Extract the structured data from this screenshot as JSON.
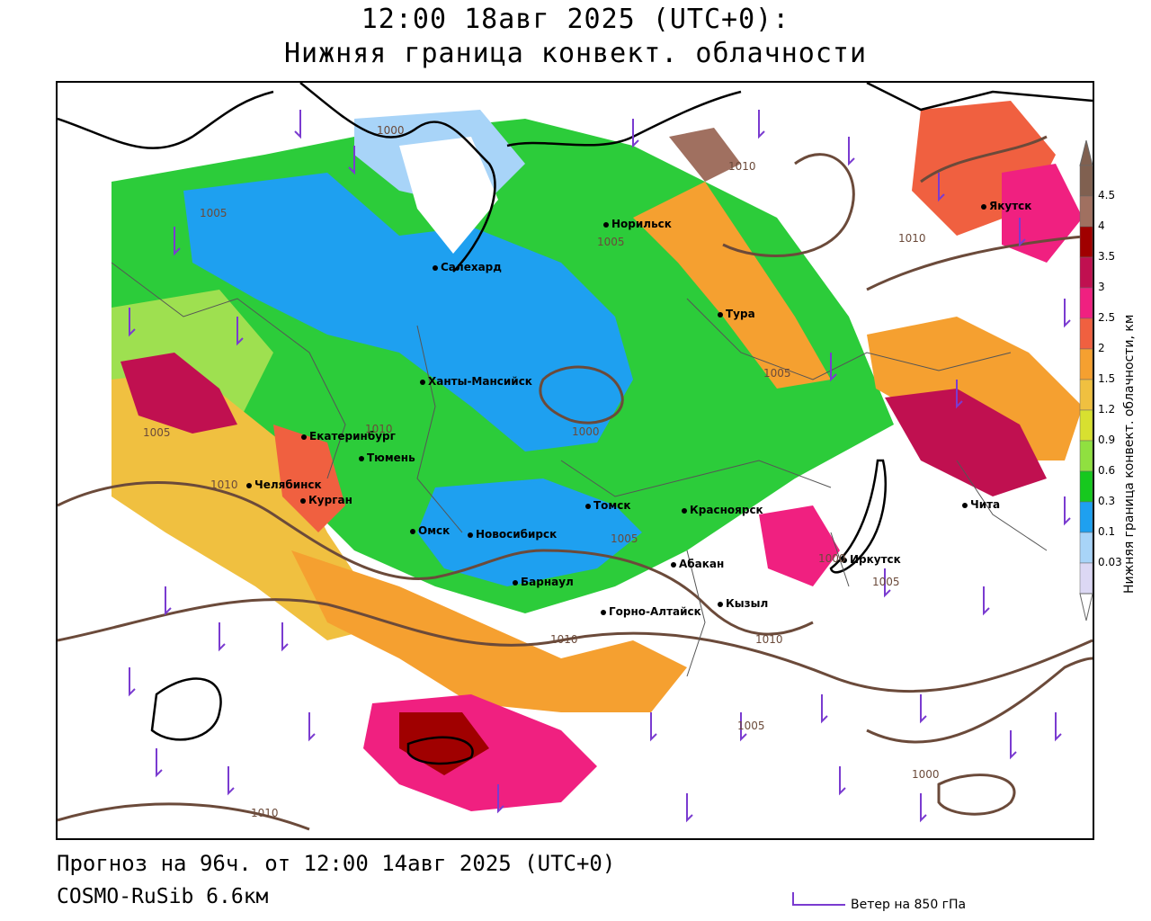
{
  "header": {
    "title_line1": "12:00 18авг 2025 (UTC+0):",
    "title_line2": "Нижняя граница конвект. облачности"
  },
  "footer": {
    "forecast": "Прогноз на 96ч. от 12:00 14авг 2025 (UTC+0)",
    "model": "COSMO-RuSib 6.6км",
    "wind_legend": "Ветер на 850 гПа"
  },
  "colorbar": {
    "title": "Нижняя граница конвект. облачности, км",
    "ticks": [
      "0.03",
      "0.1",
      "0.3",
      "0.6",
      "0.9",
      "1.2",
      "1.5",
      "2",
      "2.5",
      "3",
      "3.5",
      "4",
      "4.5"
    ],
    "colors": [
      "#dcd8f4",
      "#a8d4f8",
      "#1ea0f0",
      "#16c81e",
      "#90e040",
      "#d8e030",
      "#f0c040",
      "#f5a030",
      "#f06040",
      "#f02080",
      "#c01050",
      "#a00000",
      "#a07060",
      "#806050"
    ]
  },
  "cities": [
    {
      "name": "Норильск"
    },
    {
      "name": "Якутск"
    },
    {
      "name": "Салехард"
    },
    {
      "name": "Тура"
    },
    {
      "name": "Ханты-Мансийск"
    },
    {
      "name": "Екатеринбург"
    },
    {
      "name": "Тюмень"
    },
    {
      "name": "Челябинск"
    },
    {
      "name": "Курган"
    },
    {
      "name": "Омск"
    },
    {
      "name": "Новосибирск"
    },
    {
      "name": "Томск"
    },
    {
      "name": "Красноярск"
    },
    {
      "name": "Барнаул"
    },
    {
      "name": "Абакан"
    },
    {
      "name": "Иркутск"
    },
    {
      "name": "Чита"
    },
    {
      "name": "Горно-Алтайск"
    },
    {
      "name": "Кызыл"
    }
  ],
  "isobars": [
    "1000",
    "1005",
    "1010",
    "1005",
    "1010",
    "1005",
    "1000",
    "1010",
    "1005",
    "1010",
    "1005",
    "1005",
    "1010",
    "1005",
    "1000",
    "1010",
    "1000",
    "1010"
  ]
}
